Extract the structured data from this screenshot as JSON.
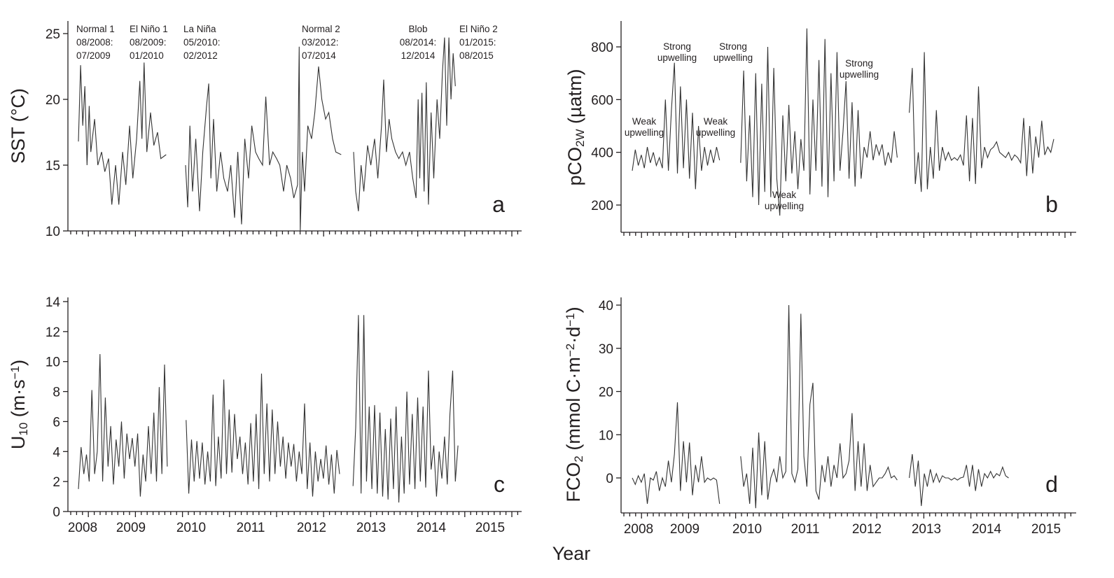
{
  "x_axis_title": "Year",
  "colors": {
    "series": "#333333",
    "axis": "#231f20"
  },
  "chart_data": [
    {
      "id": "a",
      "type": "line",
      "panel_letter": "a",
      "ylabel_parts": [
        "SST (°C)"
      ],
      "ylim": [
        10,
        26
      ],
      "yticks": [
        "10",
        "15",
        "20",
        "25"
      ],
      "xticks": [
        "2008",
        "2009",
        "2010",
        "2011",
        "2012",
        "2013",
        "2014",
        "2015"
      ],
      "xlabel": "",
      "grid": false,
      "annotations": [
        {
          "lines": [
            "Normal 1",
            "08/2008:",
            "07/2009"
          ]
        },
        {
          "lines": [
            "El Niño 1",
            "08/2009:",
            "01/2010"
          ]
        },
        {
          "lines": [
            "La Niña",
            "05/2010:",
            "02/2012"
          ]
        },
        {
          "lines": [
            "Normal 2",
            "03/2012:",
            "07/2014"
          ]
        },
        {
          "lines": [
            "Blob",
            "08/2014:",
            "12/2014"
          ]
        },
        {
          "lines": [
            "El Niño 2",
            "01/2015:",
            "08/2015"
          ]
        }
      ],
      "segments": [
        [
          [
            2008.6,
            16.8
          ],
          [
            2008.64,
            22.6
          ],
          [
            2008.68,
            18
          ],
          [
            2008.72,
            21
          ],
          [
            2008.76,
            15
          ],
          [
            2008.8,
            19.5
          ],
          [
            2008.83,
            16
          ],
          [
            2008.9,
            18.5
          ],
          [
            2008.96,
            15
          ],
          [
            2009.03,
            16
          ],
          [
            2009.09,
            14.5
          ],
          [
            2009.16,
            15.5
          ],
          [
            2009.22,
            12
          ],
          [
            2009.29,
            15
          ],
          [
            2009.35,
            12
          ],
          [
            2009.42,
            16
          ],
          [
            2009.48,
            13.5
          ],
          [
            2009.55,
            18
          ],
          [
            2009.61,
            14
          ],
          [
            2009.68,
            17
          ],
          [
            2009.74,
            21.4
          ],
          [
            2009.78,
            17
          ],
          [
            2009.82,
            22.8
          ],
          [
            2009.87,
            16
          ],
          [
            2009.94,
            19
          ],
          [
            2010.0,
            16.5
          ],
          [
            2010.07,
            17.5
          ],
          [
            2010.13,
            15.5
          ],
          [
            2010.23,
            15.8
          ]
        ],
        [
          [
            2010.59,
            15
          ],
          [
            2010.63,
            11.8
          ],
          [
            2010.67,
            18
          ],
          [
            2010.72,
            13
          ],
          [
            2010.78,
            17
          ],
          [
            2010.85,
            11.5
          ],
          [
            2010.91,
            16
          ],
          [
            2010.98,
            19.5
          ],
          [
            2011.02,
            21.2
          ],
          [
            2011.06,
            14
          ],
          [
            2011.11,
            18.5
          ],
          [
            2011.17,
            13
          ],
          [
            2011.24,
            16
          ],
          [
            2011.3,
            14
          ],
          [
            2011.37,
            13
          ],
          [
            2011.43,
            15
          ],
          [
            2011.5,
            11
          ],
          [
            2011.56,
            16
          ],
          [
            2011.63,
            10.5
          ],
          [
            2011.69,
            17
          ],
          [
            2011.76,
            14
          ],
          [
            2011.82,
            18
          ],
          [
            2011.89,
            16
          ],
          [
            2011.95,
            15.5
          ],
          [
            2012.02,
            15
          ],
          [
            2012.08,
            20.2
          ],
          [
            2012.15,
            15
          ],
          [
            2012.21,
            16
          ],
          [
            2012.28,
            15.5
          ],
          [
            2012.34,
            15
          ],
          [
            2012.41,
            13
          ],
          [
            2012.47,
            15
          ],
          [
            2012.54,
            14
          ],
          [
            2012.6,
            12.5
          ],
          [
            2012.67,
            13.5
          ],
          [
            2012.7,
            24
          ],
          [
            2012.72,
            10
          ],
          [
            2012.76,
            16
          ],
          [
            2012.8,
            13
          ],
          [
            2012.86,
            18
          ],
          [
            2012.93,
            17
          ],
          [
            2012.99,
            19
          ],
          [
            2013.06,
            22.5
          ],
          [
            2013.12,
            20
          ],
          [
            2013.19,
            18.5
          ],
          [
            2013.25,
            19
          ],
          [
            2013.32,
            17
          ],
          [
            2013.38,
            16
          ],
          [
            2013.48,
            15.8
          ]
        ],
        [
          [
            2013.71,
            16
          ],
          [
            2013.75,
            13
          ],
          [
            2013.8,
            11.5
          ],
          [
            2013.85,
            15
          ],
          [
            2013.9,
            13
          ],
          [
            2013.97,
            16.5
          ],
          [
            2014.03,
            15
          ],
          [
            2014.1,
            17
          ],
          [
            2014.16,
            14
          ],
          [
            2014.23,
            18
          ],
          [
            2014.27,
            21.5
          ],
          [
            2014.32,
            16
          ],
          [
            2014.37,
            18.5
          ],
          [
            2014.42,
            17
          ],
          [
            2014.49,
            16
          ],
          [
            2014.55,
            15.5
          ],
          [
            2014.62,
            16
          ],
          [
            2014.68,
            15
          ],
          [
            2014.75,
            16
          ],
          [
            2014.81,
            14
          ],
          [
            2014.87,
            12.5
          ],
          [
            2014.91,
            20
          ],
          [
            2014.94,
            14
          ],
          [
            2014.98,
            20.5
          ],
          [
            2015.02,
            13
          ],
          [
            2015.06,
            21.3
          ],
          [
            2015.1,
            12
          ],
          [
            2015.15,
            19
          ],
          [
            2015.2,
            14
          ],
          [
            2015.26,
            20
          ],
          [
            2015.31,
            17
          ],
          [
            2015.36,
            22
          ],
          [
            2015.4,
            24.7
          ],
          [
            2015.44,
            18
          ],
          [
            2015.48,
            24.7
          ],
          [
            2015.52,
            20
          ],
          [
            2015.56,
            23.5
          ],
          [
            2015.6,
            21
          ]
        ]
      ]
    },
    {
      "id": "b",
      "type": "line",
      "panel_letter": "b",
      "ylabel_parts": [
        "pCO",
        "2W",
        " (µatm)"
      ],
      "ylim": [
        96,
        898
      ],
      "yticks": [
        "200",
        "400",
        "600",
        "800"
      ],
      "xticks": [
        "2008",
        "2009",
        "2010",
        "2011",
        "2012",
        "2013",
        "2014",
        "2015"
      ],
      "xlabel": "",
      "grid": false,
      "annotations": [
        {
          "lines": [
            "Weak",
            "upwelling"
          ]
        },
        {
          "lines": [
            "Strong",
            "upwelling"
          ]
        },
        {
          "lines": [
            "Strong",
            "upwelling"
          ]
        },
        {
          "lines": [
            "Weak",
            "upwelling"
          ]
        },
        {
          "lines": [
            "Weak",
            "upwelling"
          ]
        },
        {
          "lines": [
            "Strong",
            "upwelling"
          ]
        }
      ],
      "series_start": [
        2008.6,
        2010.4,
        2013.2
      ],
      "series_step_years": 0.05,
      "segments_values": [
        [
          330,
          410,
          350,
          390,
          340,
          420,
          360,
          400,
          350,
          380,
          340,
          600,
          330,
          560,
          740,
          320,
          650,
          340,
          600,
          300,
          550,
          260,
          500,
          330,
          420,
          350,
          410,
          360,
          420,
          370
        ],
        [
          360,
          710,
          290,
          540,
          230,
          700,
          200,
          660,
          250,
          800,
          230,
          720,
          300,
          160,
          540,
          290,
          580,
          320,
          480,
          260,
          450,
          330,
          870,
          240,
          600,
          330,
          750,
          270,
          830,
          230,
          700,
          290,
          780,
          330,
          480,
          670,
          300,
          590,
          270,
          560,
          300,
          420,
          380,
          480,
          370,
          430,
          390,
          430,
          350,
          400,
          360,
          480,
          380
        ],
        [
          550,
          720,
          280,
          400,
          250,
          780,
          260,
          420,
          300,
          560,
          330,
          420,
          370,
          400,
          370,
          380,
          370,
          390,
          350,
          540,
          290,
          530,
          280,
          650,
          340,
          420,
          380,
          410,
          420,
          440,
          400,
          390,
          380,
          400,
          370,
          390,
          380,
          360,
          530,
          310,
          500,
          320,
          460,
          380,
          520,
          390,
          420,
          400,
          450
        ]
      ]
    },
    {
      "id": "c",
      "type": "line",
      "panel_letter": "c",
      "ylabel_parts": [
        "U",
        "10",
        " (m·s",
        "−1",
        ")"
      ],
      "ylim": [
        0,
        14
      ],
      "yticks": [
        "0",
        "2",
        "4",
        "6",
        "8",
        "10",
        "12",
        "14"
      ],
      "xticks": [
        "2008",
        "2009",
        "2010",
        "2011",
        "2012",
        "2013",
        "2014",
        "2015"
      ],
      "xlabel": "",
      "grid": false,
      "series_start": [
        2008.6,
        2010.6,
        2013.7
      ],
      "series_step_years": 0.05,
      "segments_values": [
        [
          1.5,
          4.3,
          2.5,
          3.8,
          2.0,
          8.1,
          2.5,
          4.0,
          10.5,
          2.0,
          7.6,
          3.0,
          5.7,
          1.8,
          4.8,
          3.0,
          6.0,
          2.2,
          5.2,
          3.5,
          4.9,
          3.0,
          5.2,
          1.0,
          3.8,
          2.0,
          5.7,
          2.5,
          6.6,
          2.0,
          8.3,
          2.5,
          9.8,
          3.0
        ],
        [
          6.1,
          1.2,
          4.8,
          2.0,
          4.7,
          2.2,
          4.6,
          1.8,
          4.0,
          2.0,
          7.8,
          1.7,
          5.0,
          2.2,
          8.8,
          2.5,
          6.8,
          2.6,
          6.5,
          3.5,
          5.0,
          2.5,
          4.6,
          1.8,
          5.9,
          2.0,
          6.5,
          1.5,
          9.2,
          2.5,
          7.2,
          2.0,
          6.8,
          2.5,
          6.0,
          3.0,
          5.0,
          2.2,
          4.6,
          3.0,
          4.5,
          2.0,
          4.0,
          2.5,
          7.2,
          1.5,
          4.6,
          1.0,
          4.0,
          2.0,
          3.5,
          2.2,
          4.4,
          1.8,
          3.8,
          1.2,
          4.1,
          2.5
        ],
        [
          1.7,
          5.6,
          13.1,
          1.2,
          13.1,
          2.0,
          7.0,
          1.5,
          7.1,
          1.2,
          6.6,
          1.0,
          5.5,
          0.8,
          6.2,
          1.5,
          7.0,
          0.6,
          5.0,
          1.2,
          8.0,
          1.8,
          6.5,
          1.5,
          7.6,
          2.0,
          7.0,
          1.6,
          9.4,
          2.8,
          4.4,
          1.0,
          4.0,
          2.2,
          5.0,
          1.8,
          6.5,
          9.4,
          2.0,
          4.4
        ]
      ]
    },
    {
      "id": "d",
      "type": "line",
      "panel_letter": "d",
      "ylabel_parts": [
        "FCO",
        "2",
        " (mmol C·m",
        "−2",
        "·d",
        "−1",
        ")"
      ],
      "ylim": [
        -8,
        42
      ],
      "yticks": [
        "0",
        "10",
        "20",
        "30",
        "40"
      ],
      "xticks": [
        "2008",
        "2009",
        "2010",
        "2011",
        "2012",
        "2013",
        "2014",
        "2015"
      ],
      "xlabel": "",
      "grid": false,
      "series_start": [
        2008.6,
        2010.4,
        2013.2
      ],
      "series_step_years": 0.05,
      "segments_values": [
        [
          0,
          -1.5,
          0.5,
          -1,
          1,
          -6,
          0,
          -0.5,
          1.5,
          -3,
          0,
          -2,
          4,
          -1,
          5.5,
          17.5,
          -3,
          8.5,
          -1,
          8.2,
          -4,
          3,
          -1,
          5,
          -1,
          0,
          -0.5,
          0,
          -0.5,
          -6
        ],
        [
          5,
          -2,
          1,
          -6,
          7,
          -7,
          10.5,
          -4,
          8.5,
          -5,
          0,
          2,
          -1,
          5,
          0,
          1.5,
          40,
          1,
          -1,
          2,
          38,
          5,
          -2,
          17,
          22,
          -3,
          -5,
          3,
          -1,
          5,
          -2,
          3,
          0,
          8,
          0,
          1,
          4,
          15,
          -3,
          8.5,
          -2,
          8,
          -3,
          3,
          -2,
          -1,
          0,
          0,
          1,
          2.5,
          0,
          0.5,
          -0.5
        ],
        [
          0,
          5.5,
          -2,
          4,
          -6.5,
          1,
          -2,
          2,
          -1,
          1,
          -1,
          0.5,
          0,
          0,
          -0.5,
          0,
          -0.5,
          0,
          0.2,
          3,
          -2,
          3,
          -3,
          2,
          -2,
          1,
          0,
          1.5,
          0,
          1,
          0.5,
          2.5,
          0.5,
          0
        ]
      ]
    }
  ]
}
